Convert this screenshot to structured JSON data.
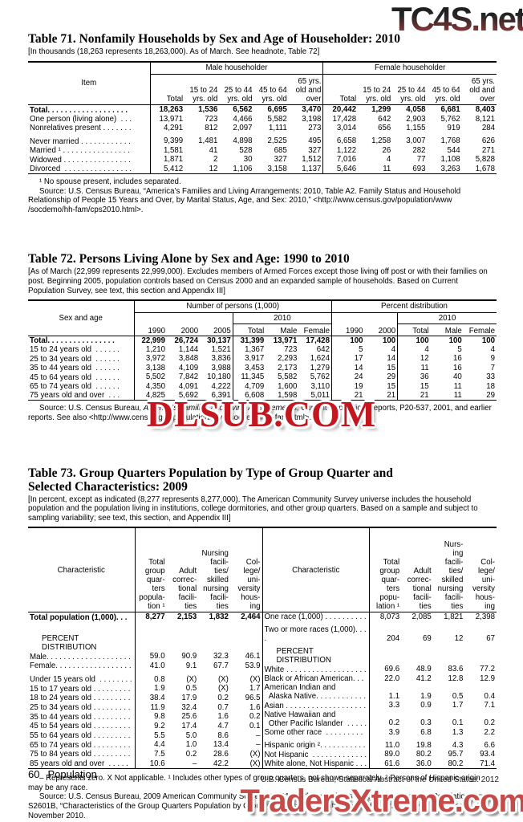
{
  "watermarks": {
    "top": "TC4S.net",
    "mid": "DLSUB.COM",
    "bottom": "TradersXtreme.com"
  },
  "footer": {
    "page": "60",
    "section": "Population",
    "credit": "U.S. Census Bureau, Statistical Abstract of the United States: 2012"
  },
  "t71": {
    "title": "Table 71. Nonfamily Households by Sex and Age of Householder: 2010",
    "note": "[In thousands (18,263 represents 18,263,000). As of March. See headnote, Table 72]",
    "item_header": "Item",
    "groups": [
      "Male householder",
      "Female householder"
    ],
    "cols": [
      "Total",
      "15 to 24\nyrs. old",
      "25 to 44\nyrs. old",
      "45 to 64\nyrs. old",
      "65 yrs.\nold and\nover"
    ],
    "rows": [
      {
        "label": "Total. . . . . . . . . . . . . . . . . . .",
        "bold": true,
        "values": [
          "18,263",
          "1,536",
          "6,562",
          "6,695",
          "3,470",
          "20,442",
          "1,299",
          "4,058",
          "6,681",
          "8,403"
        ]
      },
      {
        "label": "One person (living alone)  . . .",
        "values": [
          "13,971",
          "723",
          "4,466",
          "5,582",
          "3,198",
          "17,428",
          "642",
          "2,903",
          "5,762",
          "8,121"
        ]
      },
      {
        "label": "Nonrelatives present . . . . . . .",
        "values": [
          "4,291",
          "812",
          "2,097",
          "1,111",
          "273",
          "3,014",
          "656",
          "1,155",
          "919",
          "284"
        ]
      },
      {
        "spacer": 1
      },
      {
        "label": "Never married . . . . . . . . . . . .",
        "values": [
          "9,399",
          "1,481",
          "4,898",
          "2,525",
          "495",
          "6,658",
          "1,258",
          "3,007",
          "1,768",
          "626"
        ]
      },
      {
        "label": "Married ¹ . . . . . . . . . . . . . . . .",
        "values": [
          "1,581",
          "41",
          "528",
          "685",
          "327",
          "1,122",
          "26",
          "282",
          "544",
          "271"
        ]
      },
      {
        "label": "Widowed . . . . . . . . . . . . . . . .",
        "values": [
          "1,871",
          "2",
          "30",
          "327",
          "1,512",
          "7,016",
          "4",
          "77",
          "1,108",
          "5,828"
        ]
      },
      {
        "label": "Divorced  . . . . . . . . . . . . . . . .",
        "values": [
          "5,412",
          "12",
          "1,106",
          "3,158",
          "1,137",
          "5,646",
          "11",
          "693",
          "3,263",
          "1,678"
        ]
      }
    ],
    "footnote": "¹ No spouse present, includes separated.",
    "source": "Source: U.S. Census Bureau, “America’s Families and Living Arrangements: 2010, Table A2. Family Status and Household Relationship of People 15 Years and Over, by Marital Status, Age, and Sex: 2010,” <http://www.census.gov/population/www /socdemo/hh-fam/cps2010.html>."
  },
  "t72": {
    "title": "Table 72. Persons Living Alone by Sex and Age: 1990 to 2010",
    "note": "[As of March (22,999 represents 22,999,000). Excludes members of Armed Forces except those living off post or with their families on post. Beginning 2005, population controls based on Census 2000 and an expanded sample of households. Based on Current Population Survey, see text, this section and Appendix III]",
    "stub_header": "Sex and age",
    "group_number": "Number of persons (1,000)",
    "group_percent": "Percent distribution",
    "sub_2010": "2010",
    "years_number": [
      "1990",
      "2000",
      "2005"
    ],
    "years_percent": [
      "1990",
      "2000"
    ],
    "cols_2010": [
      "Total",
      "Male",
      "Female"
    ],
    "rows": [
      {
        "label": "Total. . . . . . . . . . . . . . . .",
        "bold": true,
        "values": [
          "22,999",
          "26,724",
          "30,137",
          "31,399",
          "13,971",
          "17,428",
          "100",
          "100",
          "100",
          "100",
          "100"
        ]
      },
      {
        "label": "15 to 24 years old  . . . . . .",
        "values": [
          "1,210",
          "1,144",
          "1,521",
          "1,367",
          "723",
          "642",
          "5",
          "4",
          "4",
          "5",
          "4"
        ]
      },
      {
        "label": "25 to 34 years old  . . . . . .",
        "values": [
          "3,972",
          "3,848",
          "3,836",
          "3,917",
          "2,293",
          "1,624",
          "17",
          "14",
          "12",
          "16",
          "9"
        ]
      },
      {
        "label": "35 to 44 years old  . . . . . .",
        "values": [
          "3,138",
          "4,109",
          "3,988",
          "3,453",
          "2,173",
          "1,279",
          "14",
          "15",
          "11",
          "16",
          "7"
        ]
      },
      {
        "label": "45 to 64 years old  . . . . . .",
        "values": [
          "5,502",
          "7,842",
          "10,180",
          "11,345",
          "5,582",
          "5,762",
          "24",
          "29",
          "36",
          "40",
          "33"
        ]
      },
      {
        "label": "65 to 74 years old  . . . . . .",
        "values": [
          "4,350",
          "4,091",
          "4,222",
          "4,709",
          "1,600",
          "3,110",
          "19",
          "15",
          "15",
          "11",
          "18"
        ]
      },
      {
        "label": "75 years old and over  . . .",
        "values": [
          "4,825",
          "5,692",
          "6,391",
          "6,608",
          "1,598",
          "5,011",
          "21",
          "21",
          "21",
          "11",
          "29"
        ]
      }
    ],
    "source_prefix": "Source: U.S. Census Bureau, ",
    "source_italic": "America’s Families and Living Arrangements",
    "source_suffix": ", Current Population Reports, P20-537, 2001, and earlier reports.  See also <http://www.census.gov/population/www/socdemo/hh-fam.html>."
  },
  "t73": {
    "title": "Table 73. Group Quarters Population by Type of Group Quarter and Selected Characteristics: 2009",
    "note": "[In percent, except as indicated (8,277 represents 8,277,000). The American Community Survey universe includes the household population and the population living in institutions, college dormitories, and other group quarters. Based on a sample and subject to sampling variability; see text, this section, and Appendix III]",
    "left": {
      "stub": "Characteristic",
      "cols": [
        "Total\ngroup\nquar-\nters\npopula-\ntion ¹",
        "Adult\ncorrec-\ntional\nfacili-\nties",
        "Nursing\nfacili-\nties/\nskilled\nnursing\nfacili-\nties",
        "Col-\nlege/\nuni-\nversity\nhous-\ning"
      ],
      "rows": [
        {
          "label": "Total population (1,000). . .",
          "bold": true,
          "values": [
            "8,277",
            "2,153",
            "1,832",
            "2,464"
          ]
        },
        {
          "spacer": 2
        },
        {
          "label": "PERCENT DISTRIBUTION",
          "section": true
        },
        {
          "label": "Male. . . . . . . . . . . . . . . . . . . .",
          "values": [
            "59.0",
            "90.9",
            "32.3",
            "46.1"
          ]
        },
        {
          "label": "Female. . . . . . . . . . . . . . . . . .",
          "values": [
            "41.0",
            "9.1",
            "67.7",
            "53.9"
          ]
        },
        {
          "spacer": 1
        },
        {
          "label": "Under 15 years old  . . . . . . . .",
          "values": [
            "0.8",
            "(X)",
            "(X)",
            "(X)"
          ]
        },
        {
          "label": "15 to 17 years old . . . . . . . . .",
          "values": [
            "1.9",
            "0.5",
            "(X)",
            "1.7"
          ]
        },
        {
          "label": "18 to 24 years old . . . . . . . . .",
          "values": [
            "38.4",
            "17.9",
            "0.2",
            "96.5"
          ]
        },
        {
          "label": "25 to 34 years old . . . . . . . . .",
          "values": [
            "11.9",
            "32.4",
            "0.7",
            "1.6"
          ]
        },
        {
          "label": "35 to 44 years old . . . . . . . . .",
          "values": [
            "9.8",
            "25.6",
            "1.6",
            "0.2"
          ]
        },
        {
          "label": "45 to 54 years old . . . . . . . . .",
          "values": [
            "9.2",
            "17.4",
            "4.7",
            "0.1"
          ]
        },
        {
          "label": "55 to 64 years old . . . . . . . . .",
          "values": [
            "5.5",
            "5.0",
            "8.6",
            "–"
          ]
        },
        {
          "label": "65 to 74 years old . . . . . . . . .",
          "values": [
            "4.4",
            "1.0",
            "13.4",
            "–"
          ]
        },
        {
          "label": "75 to 84 years old . . . . . . . . .",
          "values": [
            "7.5",
            "0.2",
            "28.6",
            "(X)"
          ]
        },
        {
          "label": "85 years old and over  . . . . .",
          "values": [
            "10.6",
            "–",
            "42.2",
            "(X)"
          ]
        }
      ]
    },
    "right": {
      "stub": "Characteristic",
      "cols": [
        "Total\ngroup\nquar-\nters\npopu-\nlation ¹",
        "Adult\ncorrec-\ntional\nfacili-\nties",
        "Nurs-\ning\nfacili-\nties/\nskilled\nnursing\nfacili-\nties",
        "Col-\nlege/\nuni-\nversity\nhous-\ning"
      ],
      "rows": [
        {
          "label": "One race (1,000) . . . . . . . . . .",
          "values": [
            "8,073",
            "2,085",
            "1,821",
            "2,398"
          ]
        },
        {
          "spacer": 1
        },
        {
          "label": "Two or more races (1,000). . . .",
          "values": [
            "204",
            "69",
            "12",
            "67"
          ]
        },
        {
          "spacer": 1
        },
        {
          "label": "PERCENT DISTRIBUTION",
          "section": true
        },
        {
          "label": "White . . . . . . . . . . . . . . . . . . .",
          "values": [
            "69.6",
            "48.9",
            "83.6",
            "77.2"
          ]
        },
        {
          "label": "Black or African American. . .",
          "values": [
            "22.0",
            "41.2",
            "12.8",
            "12.9"
          ]
        },
        {
          "label": "American Indian and\n  Alaska Native. . . . . . . . . . . .",
          "values": [
            "1.1",
            "1.9",
            "0.5",
            "0.4"
          ]
        },
        {
          "label": "Asian . . . . . . . . . . . . . . . . . . .",
          "values": [
            "3.3",
            "0.9",
            "1.7",
            "7.1"
          ]
        },
        {
          "label": "Native Hawaiian and\n  Other Pacific Islander  . . . . .",
          "values": [
            "0.2",
            "0.3",
            "0.1",
            "0.2"
          ]
        },
        {
          "label": "Some other race  . . . . . . . . .",
          "values": [
            "3.9",
            "6.8",
            "1.3",
            "2.2"
          ]
        },
        {
          "spacer": 1
        },
        {
          "label": "Hispanic origin ². . . . . . . . . . .",
          "values": [
            "11.0",
            "19.8",
            "4.3",
            "6.6"
          ]
        },
        {
          "label": "Not Hispanic  . . . . . . . . . . . . .",
          "values": [
            "89.0",
            "80.2",
            "95.7",
            "93.4"
          ]
        },
        {
          "label": "White alone, Not Hispanic . . .",
          "values": [
            "61.6",
            "36.0",
            "80.2",
            "71.4"
          ]
        }
      ]
    },
    "footnote": "– Represents zero. X Not applicable. ¹ Includes other types of group quarters, not shown separately. ² Persons of Hispanic origin may be any race.",
    "source": "Source: U.S. Census Bureau, 2009 American Community Survey, S2601A, “Characteristics of the Group Quarters Population” and S2601B, “Characteristics of the Group Quarters Population by Group Quarters Type,” <http://factfinder.census.gov/>, accessed November 2010."
  }
}
